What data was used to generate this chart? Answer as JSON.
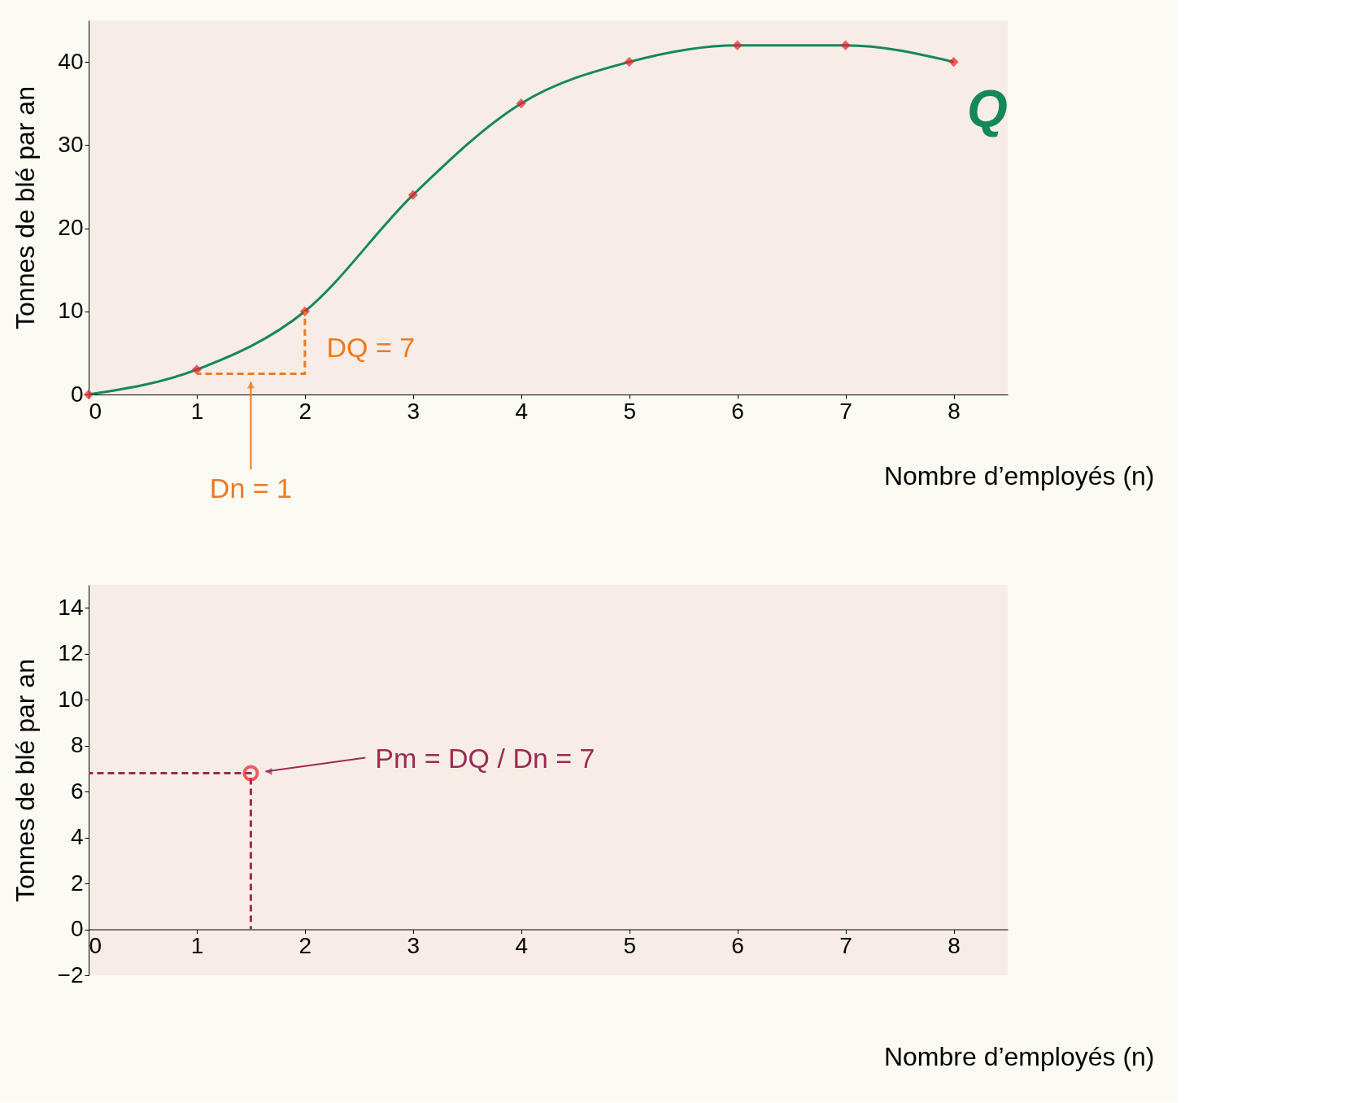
{
  "chart_data": [
    {
      "type": "line",
      "xlabel": "Nombre d’employés (n)",
      "ylabel": "Tonnes de blé par an",
      "xlim": [
        0,
        8.5
      ],
      "ylim": [
        0,
        45
      ],
      "xticks": [
        0,
        1,
        2,
        3,
        4,
        5,
        6,
        7,
        8
      ],
      "yticks": [
        0,
        10,
        20,
        30,
        40
      ],
      "grid": false,
      "series": [
        {
          "color": "#15885a",
          "marker": "none",
          "x": [
            0,
            1,
            2,
            3,
            4,
            5,
            6,
            7,
            8
          ],
          "values": [
            0,
            3,
            10,
            24,
            35,
            40,
            42,
            42,
            40
          ]
        },
        {
          "type": "scatter",
          "color": "#e8202a",
          "marker": "diamond",
          "x": [
            0,
            1,
            2,
            3,
            4,
            5,
            6,
            7,
            8
          ],
          "values": [
            0,
            3,
            10,
            24,
            35,
            40,
            42,
            42,
            40
          ]
        },
        {
          "color": "#ec7a22",
          "line_style": "dashed",
          "marker": "none",
          "x": [
            1,
            2,
            2
          ],
          "values": [
            2.5,
            2.5,
            10
          ]
        }
      ],
      "annotations": [
        "Q",
        "DQ = 7",
        "Dn = 1"
      ]
    },
    {
      "type": "scatter",
      "xlabel": "Nombre d’employés (n)",
      "ylabel": "Tonnes de blé par an",
      "xlim": [
        0,
        8.5
      ],
      "ylim": [
        -2,
        15
      ],
      "xticks": [
        0,
        1,
        2,
        3,
        4,
        5,
        6,
        7,
        8
      ],
      "yticks": [
        -2,
        0,
        2,
        4,
        6,
        8,
        10,
        12,
        14
      ],
      "grid": false,
      "series": [
        {
          "type": "line",
          "color": "#9b2a55",
          "line_style": "dashed",
          "marker": "none",
          "x": [
            0,
            1.5,
            1.5
          ],
          "values": [
            6.8,
            6.8,
            0
          ]
        },
        {
          "color": "#e8202a",
          "marker": "circle",
          "x": [
            1.5
          ],
          "values": [
            6.8
          ]
        }
      ],
      "annotations": [
        "Pm = DQ / Dn = 7"
      ]
    }
  ]
}
